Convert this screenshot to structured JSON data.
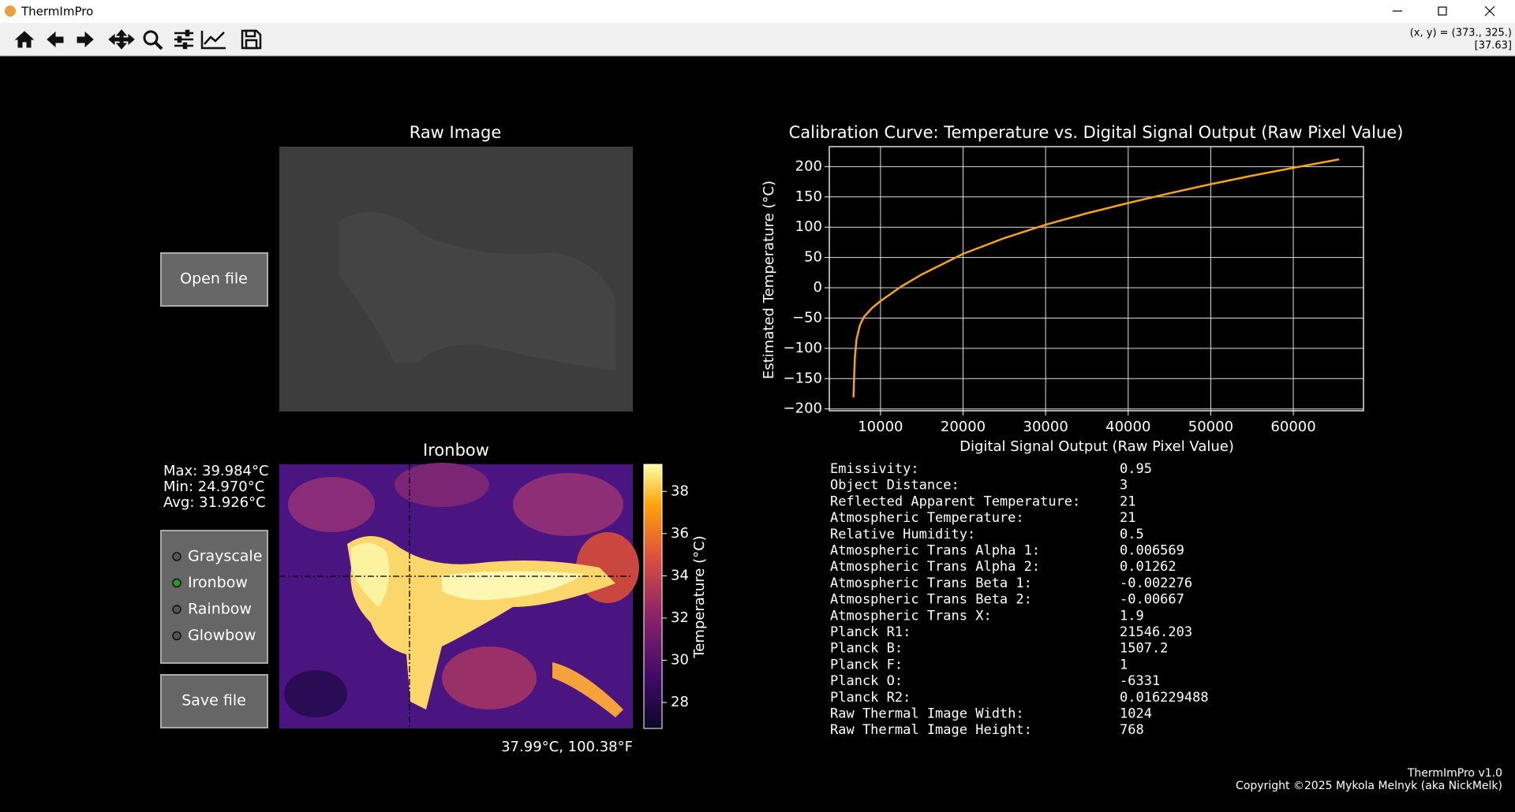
{
  "window": {
    "title": "ThermImPro"
  },
  "toolbar": {
    "coords": "(x, y) = (373., 325.)",
    "value": "[37.63]"
  },
  "raw_image": {
    "title": "Raw Image"
  },
  "buttons": {
    "open": "Open file",
    "save": "Save file"
  },
  "ironbow": {
    "title": "Ironbow",
    "stats": [
      "Max: 39.984°C",
      "Min:  24.970°C",
      "Avg:  31.926°C"
    ],
    "cursor": "37.99°C, 100.38°F",
    "colorbar": {
      "label": "Temperature (°C)",
      "lim": [
        26.77,
        39.28
      ],
      "ticks": [
        28,
        30,
        32,
        34,
        36,
        38
      ]
    }
  },
  "colormaps": {
    "options": [
      "Grayscale",
      "Ironbow",
      "Rainbow",
      "Glowbow"
    ],
    "selected": 1
  },
  "chart_data": {
    "type": "line",
    "title": "Calibration Curve: Temperature vs. Digital Signal Output (Raw Pixel Value)",
    "x_label": "Digital Signal Output (Raw Pixel Value)",
    "y_label": "Estimated Temperature (°C)",
    "x": [
      6720,
      6800,
      6900,
      7100,
      7500,
      8000,
      9000,
      10000,
      12500,
      15000,
      20000,
      25000,
      30000,
      35000,
      40000,
      45000,
      50000,
      55000,
      60000,
      65535
    ],
    "values": [
      -181,
      -150,
      -115,
      -85,
      -62,
      -48,
      -33,
      -22,
      2,
      22,
      56,
      82,
      104,
      123,
      140,
      156,
      171,
      185,
      198,
      212
    ],
    "color": "#f5a31f",
    "xlim": [
      3800,
      68500
    ],
    "ylim": [
      -203,
      233
    ],
    "xticks": [
      10000,
      20000,
      30000,
      40000,
      50000,
      60000
    ],
    "yticks": [
      {
        "value": -200,
        "label": "−200"
      },
      {
        "value": -150,
        "label": "−150"
      },
      {
        "value": -100,
        "label": "−100"
      },
      {
        "value": -50,
        "label": "−50"
      },
      0,
      50,
      100,
      150,
      200
    ],
    "grid": true
  },
  "parameters": [
    [
      "Emissivity:",
      "0.95"
    ],
    [
      "Object Distance:",
      "3"
    ],
    [
      "Reflected Apparent Temperature:",
      "21"
    ],
    [
      "Atmospheric Temperature:",
      "21"
    ],
    [
      "Relative Humidity:",
      "0.5"
    ],
    [
      "Atmospheric Trans Alpha 1:",
      "0.006569"
    ],
    [
      "Atmospheric Trans Alpha 2:",
      "0.01262"
    ],
    [
      "Atmospheric Trans Beta 1:",
      "-0.002276"
    ],
    [
      "Atmospheric Trans Beta 2:",
      "-0.00667"
    ],
    [
      "Atmospheric Trans X:",
      "1.9"
    ],
    [
      "Planck R1:",
      "21546.203"
    ],
    [
      "Planck B:",
      "1507.2"
    ],
    [
      "Planck F:",
      "1"
    ],
    [
      "Planck O:",
      "-6331"
    ],
    [
      "Planck R2:",
      "0.016229488"
    ],
    [
      "Raw Thermal Image Width:",
      "1024"
    ],
    [
      "Raw Thermal Image Height:",
      "768"
    ]
  ],
  "footer": [
    "ThermImPro v1.0",
    "Copyright ©2025 Mykola Melnyk (aka NickMelk)"
  ]
}
